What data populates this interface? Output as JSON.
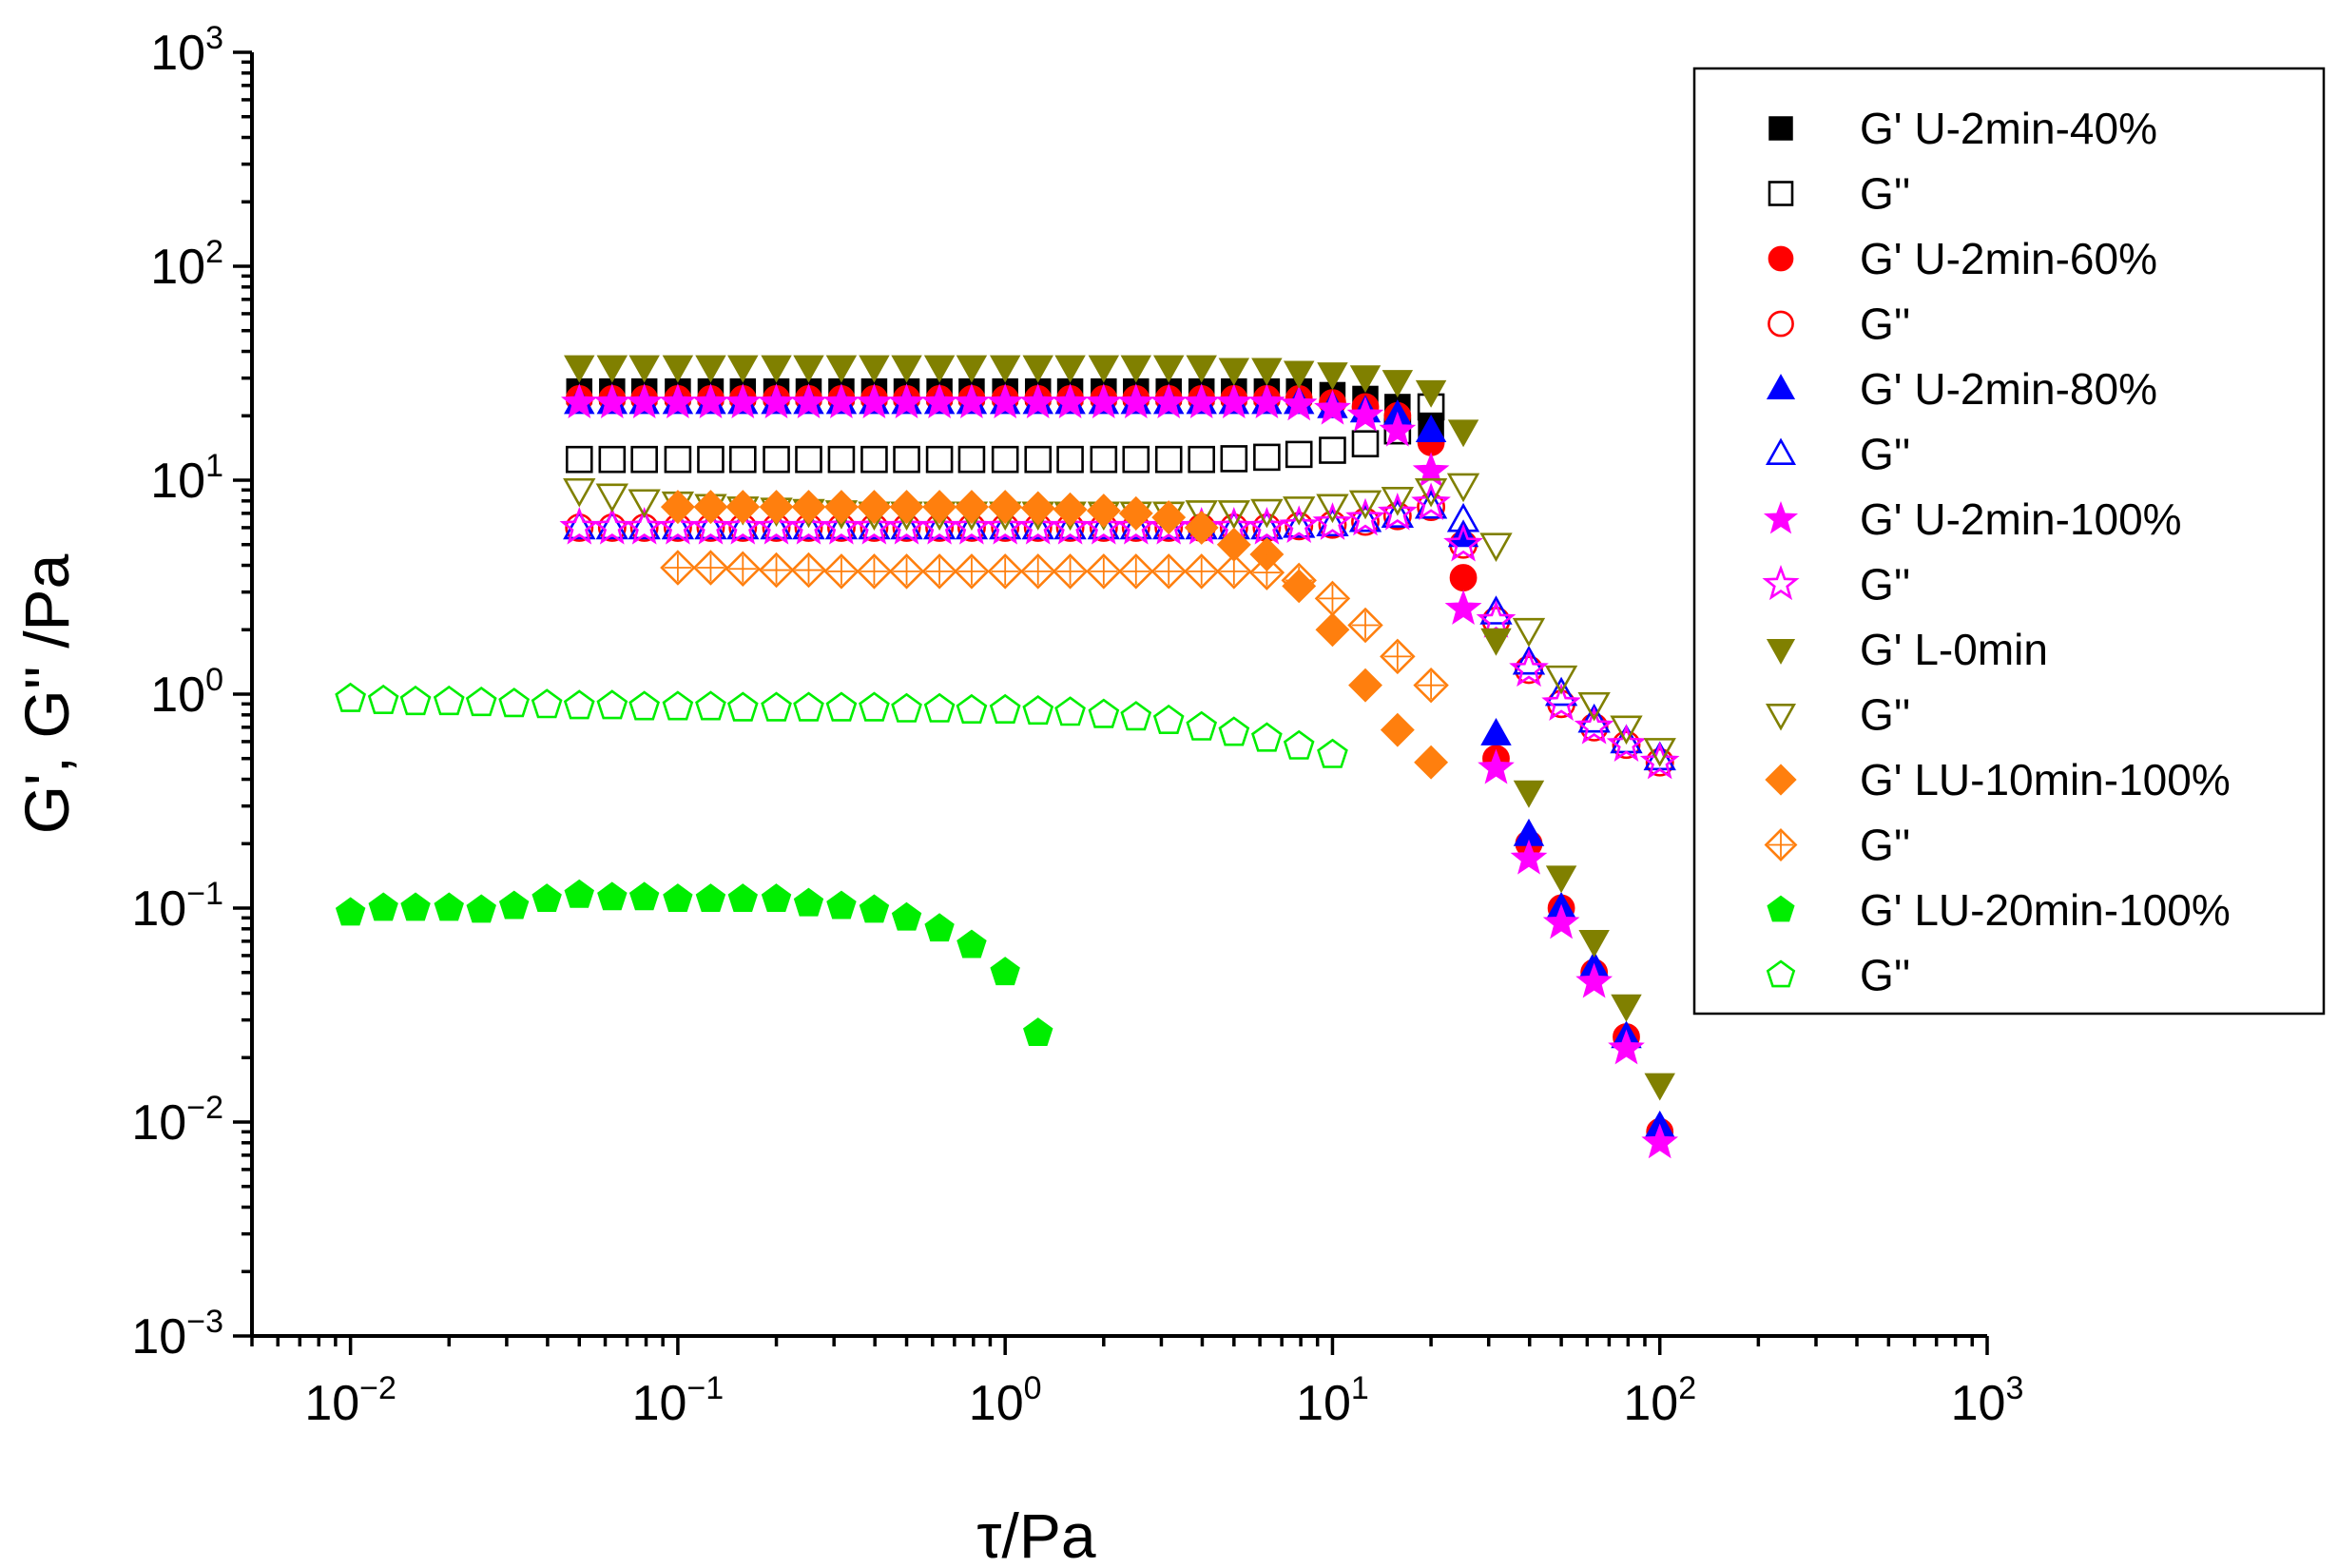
{
  "chart_data": {
    "type": "scatter",
    "title": "",
    "xlabel": "τ/Pa",
    "ylabel": "G', G'' /Pa",
    "xscale": "log",
    "yscale": "log",
    "xlim": [
      0.005,
      1000
    ],
    "ylim": [
      0.001,
      1000
    ],
    "x_ticks": [
      {
        "value": 0.01,
        "base": "10",
        "exp": "−2"
      },
      {
        "value": 0.1,
        "base": "10",
        "exp": "−1"
      },
      {
        "value": 1,
        "base": "10",
        "exp": "0"
      },
      {
        "value": 10,
        "base": "10",
        "exp": "1"
      },
      {
        "value": 100,
        "base": "10",
        "exp": "2"
      },
      {
        "value": 1000,
        "base": "10",
        "exp": "3"
      }
    ],
    "y_ticks": [
      {
        "value": 0.001,
        "base": "10",
        "exp": "−3"
      },
      {
        "value": 0.01,
        "base": "10",
        "exp": "−2"
      },
      {
        "value": 0.1,
        "base": "10",
        "exp": "−1"
      },
      {
        "value": 1,
        "base": "10",
        "exp": "0"
      },
      {
        "value": 10,
        "base": "10",
        "exp": "1"
      },
      {
        "value": 100,
        "base": "10",
        "exp": "2"
      },
      {
        "value": 1000,
        "base": "10",
        "exp": "3"
      }
    ],
    "grid": false,
    "legend_position": "top-right",
    "series": [
      {
        "name": "G' U-2min-40%",
        "marker": "square",
        "filled": true,
        "color": "#000000",
        "x": [
          0.05,
          0.063,
          0.079,
          0.1,
          0.126,
          0.158,
          0.2,
          0.251,
          0.316,
          0.398,
          0.5,
          0.63,
          0.79,
          1.0,
          1.26,
          1.58,
          2.0,
          2.51,
          3.16,
          3.98,
          5.0,
          6.3,
          7.9,
          10,
          12.6,
          15.8,
          20
        ],
        "y": [
          26,
          26,
          26,
          26,
          26,
          26,
          26,
          26,
          26,
          26,
          26,
          26,
          26,
          26,
          26,
          26,
          26,
          26,
          26,
          26,
          26,
          26,
          26,
          25,
          24,
          22,
          18
        ]
      },
      {
        "name": "G''",
        "marker": "square",
        "filled": false,
        "color": "#000000",
        "x": [
          0.05,
          0.063,
          0.079,
          0.1,
          0.126,
          0.158,
          0.2,
          0.251,
          0.316,
          0.398,
          0.5,
          0.63,
          0.79,
          1.0,
          1.26,
          1.58,
          2.0,
          2.51,
          3.16,
          3.98,
          5.0,
          6.3,
          7.9,
          10,
          12.6,
          15.8,
          20
        ],
        "y": [
          12.5,
          12.5,
          12.5,
          12.5,
          12.5,
          12.5,
          12.5,
          12.5,
          12.5,
          12.5,
          12.5,
          12.5,
          12.5,
          12.5,
          12.5,
          12.5,
          12.5,
          12.5,
          12.5,
          12.5,
          12.6,
          12.8,
          13.2,
          13.8,
          14.8,
          17,
          22
        ]
      },
      {
        "name": "G' U-2min-60%",
        "marker": "circle",
        "filled": true,
        "color": "#ff0000",
        "x": [
          0.05,
          0.063,
          0.079,
          0.1,
          0.126,
          0.158,
          0.2,
          0.251,
          0.316,
          0.398,
          0.5,
          0.63,
          0.79,
          1.0,
          1.26,
          1.58,
          2.0,
          2.51,
          3.16,
          3.98,
          5.0,
          6.3,
          7.9,
          10,
          12.6,
          15.8,
          20,
          25.1,
          31.6,
          39.8,
          50,
          63,
          79,
          100
        ],
        "y": [
          24,
          24,
          24,
          24,
          24,
          24,
          24,
          24,
          24,
          24,
          24,
          24,
          24,
          24,
          24,
          24,
          24,
          24,
          24,
          24,
          24,
          24,
          24,
          23,
          22,
          20,
          15,
          3.5,
          0.5,
          0.2,
          0.1,
          0.05,
          0.025,
          0.009
        ]
      },
      {
        "name": "G''",
        "marker": "circle",
        "filled": false,
        "color": "#ff0000",
        "x": [
          0.05,
          0.063,
          0.079,
          0.1,
          0.126,
          0.158,
          0.2,
          0.251,
          0.316,
          0.398,
          0.5,
          0.63,
          0.79,
          1.0,
          1.26,
          1.58,
          2.0,
          2.51,
          3.16,
          3.98,
          5.0,
          6.3,
          7.9,
          10,
          12.6,
          15.8,
          20,
          25.1,
          31.6,
          39.8,
          50,
          63,
          79,
          100
        ],
        "y": [
          6,
          6,
          6,
          6,
          6,
          6,
          6,
          6,
          6,
          6,
          6,
          6,
          6,
          6,
          6,
          6,
          6,
          6,
          6,
          6,
          6,
          6,
          6.1,
          6.2,
          6.4,
          6.8,
          7.5,
          5,
          2.2,
          1.3,
          0.9,
          0.7,
          0.58,
          0.48
        ]
      },
      {
        "name": "G' U-2min-80%",
        "marker": "triangle-up",
        "filled": true,
        "color": "#0000ff",
        "x": [
          0.05,
          0.063,
          0.079,
          0.1,
          0.126,
          0.158,
          0.2,
          0.251,
          0.316,
          0.398,
          0.5,
          0.63,
          0.79,
          1.0,
          1.26,
          1.58,
          2.0,
          2.51,
          3.16,
          3.98,
          5.0,
          6.3,
          7.9,
          10,
          12.6,
          15.8,
          20,
          25.1,
          31.6,
          39.8,
          50,
          63,
          79,
          100
        ],
        "y": [
          23,
          23,
          23,
          23,
          23,
          23,
          23,
          23,
          23,
          23,
          23,
          23,
          23,
          23,
          23,
          23,
          23,
          23,
          23,
          23,
          23,
          23,
          23,
          22,
          21,
          20,
          17,
          5.5,
          0.65,
          0.22,
          0.1,
          0.053,
          0.025,
          0.0095
        ]
      },
      {
        "name": "G''",
        "marker": "triangle-up",
        "filled": false,
        "color": "#0000ff",
        "x": [
          0.05,
          0.063,
          0.079,
          0.1,
          0.126,
          0.158,
          0.2,
          0.251,
          0.316,
          0.398,
          0.5,
          0.63,
          0.79,
          1.0,
          1.26,
          1.58,
          2.0,
          2.51,
          3.16,
          3.98,
          5.0,
          6.3,
          7.9,
          10,
          12.6,
          15.8,
          20,
          25.1,
          31.6,
          39.8,
          50,
          63,
          79,
          100
        ],
        "y": [
          6,
          6,
          6,
          6,
          6,
          6,
          6,
          6,
          6,
          6,
          6,
          6,
          6,
          6,
          6,
          6,
          6,
          6,
          6,
          6,
          6,
          6,
          6.1,
          6.2,
          6.5,
          6.8,
          7.5,
          6.5,
          2.4,
          1.4,
          1.0,
          0.75,
          0.6,
          0.5
        ]
      },
      {
        "name": "G' U-2min-100%",
        "marker": "star",
        "filled": true,
        "color": "#ff00ff",
        "x": [
          0.05,
          0.063,
          0.079,
          0.1,
          0.126,
          0.158,
          0.2,
          0.251,
          0.316,
          0.398,
          0.5,
          0.63,
          0.79,
          1.0,
          1.26,
          1.58,
          2.0,
          2.51,
          3.16,
          3.98,
          5.0,
          6.3,
          7.9,
          10,
          12.6,
          15.8,
          20,
          25.1,
          31.6,
          39.8,
          50,
          63,
          79,
          100
        ],
        "y": [
          23,
          23,
          23,
          23,
          23,
          23,
          23,
          23,
          23,
          23,
          23,
          23,
          23,
          23,
          23,
          23,
          23,
          23,
          23,
          23,
          23,
          23,
          22.5,
          21.5,
          20,
          17,
          11,
          2.5,
          0.45,
          0.17,
          0.085,
          0.045,
          0.022,
          0.008
        ]
      },
      {
        "name": "G''",
        "marker": "star",
        "filled": false,
        "color": "#ff00ff",
        "x": [
          0.05,
          0.063,
          0.079,
          0.1,
          0.126,
          0.158,
          0.2,
          0.251,
          0.316,
          0.398,
          0.5,
          0.63,
          0.79,
          1.0,
          1.26,
          1.58,
          2.0,
          2.51,
          3.16,
          3.98,
          5.0,
          6.3,
          7.9,
          10,
          12.6,
          15.8,
          20,
          25.1,
          31.6,
          39.8,
          50,
          63,
          79,
          100
        ],
        "y": [
          6,
          6,
          6,
          6,
          6,
          6,
          6,
          6,
          6,
          6,
          6,
          6,
          6,
          6,
          6,
          6,
          6,
          6,
          6,
          6,
          6,
          6,
          6.1,
          6.3,
          6.6,
          7,
          7.8,
          5,
          2.2,
          1.3,
          0.9,
          0.7,
          0.58,
          0.48
        ]
      },
      {
        "name": "G' L-0min",
        "marker": "triangle-down",
        "filled": true,
        "color": "#808000",
        "x": [
          0.05,
          0.063,
          0.079,
          0.1,
          0.126,
          0.158,
          0.2,
          0.251,
          0.316,
          0.398,
          0.5,
          0.63,
          0.79,
          1.0,
          1.26,
          1.58,
          2.0,
          2.51,
          3.16,
          3.98,
          5.0,
          6.3,
          7.9,
          10,
          12.6,
          15.8,
          20,
          25.1,
          31.6,
          39.8,
          50,
          63,
          79,
          100
        ],
        "y": [
          34,
          34,
          34,
          34,
          34,
          34,
          34,
          34,
          34,
          34,
          34,
          34,
          34,
          34,
          34,
          34,
          34,
          34,
          34,
          34,
          33,
          33,
          32,
          31.5,
          30.5,
          29,
          26,
          17,
          1.8,
          0.35,
          0.14,
          0.07,
          0.035,
          0.015
        ]
      },
      {
        "name": "G''",
        "marker": "triangle-down",
        "filled": false,
        "color": "#808000",
        "x": [
          0.05,
          0.063,
          0.079,
          0.1,
          0.126,
          0.158,
          0.2,
          0.251,
          0.316,
          0.398,
          0.5,
          0.63,
          0.79,
          1.0,
          1.26,
          1.58,
          2.0,
          2.51,
          3.16,
          3.98,
          5.0,
          6.3,
          7.9,
          10,
          12.6,
          15.8,
          20,
          25.1,
          31.6,
          39.8,
          50,
          63,
          79,
          100
        ],
        "y": [
          9,
          8.5,
          8,
          7.8,
          7.6,
          7.4,
          7.3,
          7.2,
          7.1,
          7,
          7,
          7,
          7,
          7,
          7,
          7,
          7,
          7,
          7,
          7.1,
          7.1,
          7.2,
          7.4,
          7.6,
          7.9,
          8.2,
          9,
          9.5,
          5,
          2,
          1.2,
          0.9,
          0.7,
          0.55
        ]
      },
      {
        "name": "G' LU-10min-100%",
        "marker": "diamond",
        "filled": true,
        "color": "#ff7f0e",
        "x": [
          0.1,
          0.126,
          0.158,
          0.2,
          0.251,
          0.316,
          0.398,
          0.5,
          0.63,
          0.79,
          1.0,
          1.26,
          1.58,
          2.0,
          2.51,
          3.16,
          3.98,
          5.0,
          6.3,
          7.9,
          10,
          12.6,
          15.8,
          20
        ],
        "y": [
          7.5,
          7.5,
          7.5,
          7.5,
          7.5,
          7.5,
          7.5,
          7.5,
          7.5,
          7.5,
          7.5,
          7.4,
          7.3,
          7.2,
          7,
          6.7,
          6,
          5,
          4.5,
          3.2,
          2.0,
          1.1,
          0.68,
          0.48
        ]
      },
      {
        "name": "G''",
        "marker": "diamond",
        "filled": false,
        "color": "#ff7f0e",
        "x": [
          0.1,
          0.126,
          0.158,
          0.2,
          0.251,
          0.316,
          0.398,
          0.5,
          0.63,
          0.79,
          1.0,
          1.26,
          1.58,
          2.0,
          2.51,
          3.16,
          3.98,
          5.0,
          6.3,
          7.9,
          10,
          12.6,
          15.8,
          20
        ],
        "y": [
          3.9,
          3.9,
          3.85,
          3.8,
          3.8,
          3.75,
          3.75,
          3.75,
          3.75,
          3.75,
          3.75,
          3.75,
          3.75,
          3.75,
          3.75,
          3.75,
          3.75,
          3.75,
          3.7,
          3.4,
          2.8,
          2.1,
          1.5,
          1.1
        ]
      },
      {
        "name": "G' LU-20min-100%",
        "marker": "pentagon",
        "filled": true,
        "color": "#00ee00",
        "x": [
          0.01,
          0.0126,
          0.0158,
          0.02,
          0.0251,
          0.0316,
          0.0398,
          0.05,
          0.063,
          0.079,
          0.1,
          0.126,
          0.158,
          0.2,
          0.251,
          0.316,
          0.398,
          0.5,
          0.63,
          0.79,
          1.0,
          1.26
        ],
        "y": [
          0.095,
          0.1,
          0.1,
          0.1,
          0.098,
          0.102,
          0.11,
          0.115,
          0.112,
          0.112,
          0.11,
          0.11,
          0.11,
          0.11,
          0.105,
          0.102,
          0.098,
          0.09,
          0.08,
          0.067,
          0.05,
          0.026
        ]
      },
      {
        "name": "G''",
        "marker": "pentagon",
        "filled": false,
        "color": "#00ee00",
        "x": [
          0.01,
          0.0126,
          0.0158,
          0.02,
          0.0251,
          0.0316,
          0.0398,
          0.05,
          0.063,
          0.079,
          0.1,
          0.126,
          0.158,
          0.2,
          0.251,
          0.316,
          0.398,
          0.5,
          0.63,
          0.79,
          1.0,
          1.26,
          1.58,
          2.0,
          2.51,
          3.16,
          3.98,
          5.0,
          6.3,
          7.9,
          10
        ],
        "y": [
          0.95,
          0.93,
          0.92,
          0.92,
          0.91,
          0.9,
          0.89,
          0.88,
          0.88,
          0.87,
          0.87,
          0.87,
          0.86,
          0.86,
          0.86,
          0.86,
          0.86,
          0.85,
          0.85,
          0.84,
          0.84,
          0.83,
          0.82,
          0.8,
          0.78,
          0.75,
          0.7,
          0.66,
          0.62,
          0.57,
          0.52
        ]
      }
    ]
  }
}
